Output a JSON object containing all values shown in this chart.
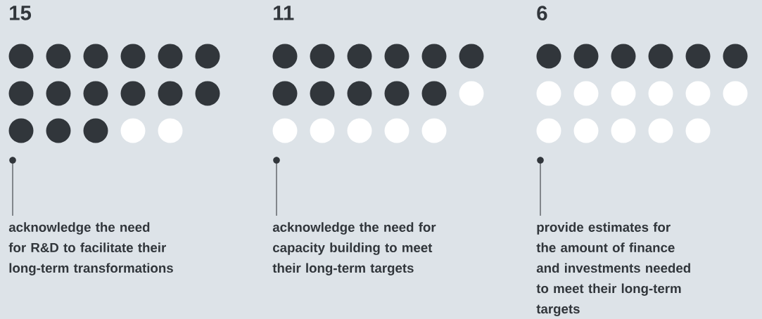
{
  "chart_data": {
    "type": "other",
    "data_labels": true,
    "categories": [
      "acknowledge the need for R&D to facilitate their long-term transformations",
      "acknowledge the need for capacity building to meet their long-term targets",
      "provide estimates for the amount of finance and investments needed to meet their long-term targets"
    ],
    "series": [
      {
        "color": "#31363b",
        "values": [
          15,
          11,
          6
        ]
      }
    ]
  }
}
